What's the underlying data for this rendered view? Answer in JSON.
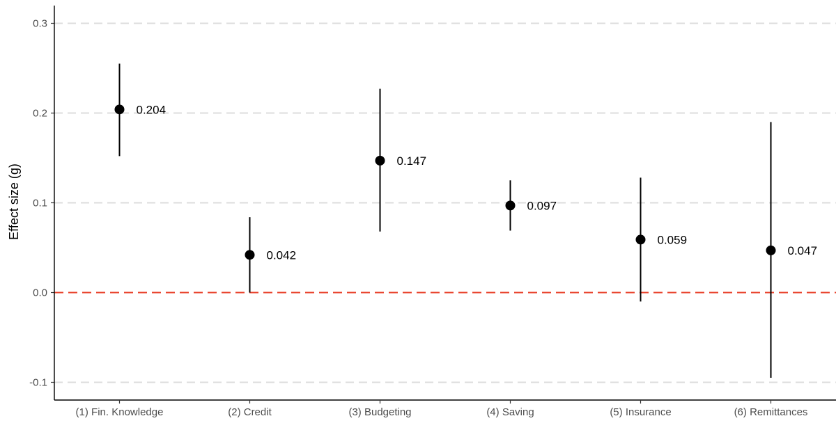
{
  "chart_data": {
    "type": "scatter",
    "subtype": "point-estimate-with-error-bars",
    "title": "",
    "xlabel": "",
    "ylabel": "Effect size (g)",
    "ylim": [
      -0.115,
      0.32
    ],
    "yticks": [
      -0.1,
      0.0,
      0.1,
      0.2,
      0.3
    ],
    "ytick_labels": [
      "-0.1",
      "0.0",
      "0.1",
      "0.2",
      "0.3"
    ],
    "grid": "horizontal dashed major gridlines",
    "reference_line": {
      "y": 0.0,
      "style": "dashed",
      "color": "#e8412a"
    },
    "categories": [
      "(1) Fin. Knowledge",
      "(2) Credit",
      "(3) Budgeting",
      "(4) Saving",
      "(5) Insurance",
      "(6) Remittances"
    ],
    "values": [
      0.204,
      0.042,
      0.147,
      0.097,
      0.059,
      0.047
    ],
    "value_labels": [
      "0.204",
      "0.042",
      "0.147",
      "0.097",
      "0.059",
      "0.047"
    ],
    "ci_lower": [
      0.152,
      0.0,
      0.068,
      0.069,
      -0.01,
      -0.095
    ],
    "ci_upper": [
      0.255,
      0.084,
      0.227,
      0.125,
      0.128,
      0.19
    ],
    "colors": {
      "points": "#000000",
      "error_bars": "#000000",
      "grid": "#dcdcdc",
      "zero_line": "#e8412a",
      "axis": "#000000"
    }
  }
}
